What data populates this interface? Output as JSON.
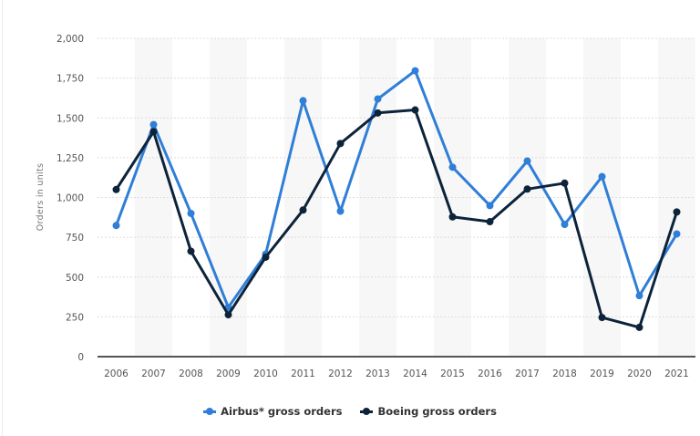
{
  "chart_data": {
    "type": "line",
    "title": "",
    "xlabel": "",
    "ylabel": "Orders in units",
    "ylim": [
      0,
      2000
    ],
    "yticks": [
      0,
      250,
      500,
      750,
      1000,
      1250,
      1500,
      1750,
      2000
    ],
    "ytick_labels": [
      "0",
      "250",
      "500",
      "750",
      "1,000",
      "1,250",
      "1,500",
      "1,750",
      "2,000"
    ],
    "grid": true,
    "legend_position": "bottom",
    "categories": [
      "2006",
      "2007",
      "2008",
      "2009",
      "2010",
      "2011",
      "2012",
      "2013",
      "2014",
      "2015",
      "2016",
      "2017",
      "2018",
      "2019",
      "2020",
      "2021"
    ],
    "series": [
      {
        "name": "Airbus* gross orders",
        "color": "#2f7ed8",
        "values": [
          824,
          1458,
          900,
          310,
          644,
          1608,
          914,
          1619,
          1796,
          1190,
          949,
          1229,
          831,
          1131,
          383,
          771
        ]
      },
      {
        "name": "Boeing gross orders",
        "color": "#0d233a",
        "values": [
          1050,
          1413,
          662,
          263,
          625,
          921,
          1339,
          1531,
          1550,
          878,
          848,
          1053,
          1090,
          246,
          184,
          909
        ]
      }
    ]
  },
  "legend": {
    "items": [
      {
        "label": "Airbus* gross orders",
        "color": "#2f7ed8"
      },
      {
        "label": "Boeing gross orders",
        "color": "#0d233a"
      }
    ]
  },
  "colors": {
    "grid": "#dcdcdc",
    "axis": "#555555",
    "band": "#f7f7f7"
  }
}
